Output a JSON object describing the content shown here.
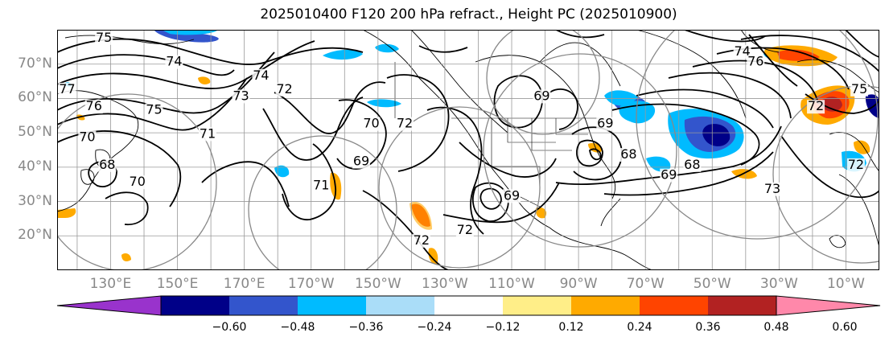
{
  "title": "2025010400 F120 200 hPa refract., Height PC (2025010900)",
  "axes": {
    "latitude_labels": [
      "70°N",
      "60°N",
      "50°N",
      "40°N",
      "30°N",
      "20°N"
    ],
    "longitude_labels": [
      "130°E",
      "150°E",
      "170°E",
      "170°W",
      "150°W",
      "130°W",
      "110°W",
      "90°W",
      "70°W",
      "50°W",
      "30°W",
      "10°W"
    ]
  },
  "contour_labels": [
    {
      "text": "75",
      "lon": 128,
      "lat": 77
    },
    {
      "text": "74",
      "lon": 149,
      "lat": 70
    },
    {
      "text": "77",
      "lon": 117,
      "lat": 62
    },
    {
      "text": "76",
      "lon": 125,
      "lat": 57
    },
    {
      "text": "75",
      "lon": 143,
      "lat": 56
    },
    {
      "text": "73",
      "lon": 169,
      "lat": 60
    },
    {
      "text": "74",
      "lon": 175,
      "lat": 66
    },
    {
      "text": "72",
      "lon": 182,
      "lat": 62
    },
    {
      "text": "71",
      "lon": 159,
      "lat": 49
    },
    {
      "text": "70",
      "lon": 123,
      "lat": 48
    },
    {
      "text": "68",
      "lon": 129,
      "lat": 40
    },
    {
      "text": "70",
      "lon": 138,
      "lat": 35
    },
    {
      "text": "71",
      "lon": 193,
      "lat": 34
    },
    {
      "text": "69",
      "lon": 205,
      "lat": 41
    },
    {
      "text": "70",
      "lon": 208,
      "lat": 52
    },
    {
      "text": "72",
      "lon": 218,
      "lat": 52
    },
    {
      "text": "72",
      "lon": 223,
      "lat": 18
    },
    {
      "text": "72",
      "lon": 236,
      "lat": 21
    },
    {
      "text": "69",
      "lon": 250,
      "lat": 31
    },
    {
      "text": "69",
      "lon": 259,
      "lat": 60
    },
    {
      "text": "69",
      "lon": 278,
      "lat": 52
    },
    {
      "text": "68",
      "lon": 285,
      "lat": 43
    },
    {
      "text": "69",
      "lon": 297,
      "lat": 37
    },
    {
      "text": "68",
      "lon": 304,
      "lat": 40
    },
    {
      "text": "74",
      "lon": 319,
      "lat": 73
    },
    {
      "text": "76",
      "lon": 323,
      "lat": 70
    },
    {
      "text": "73",
      "lon": 328,
      "lat": 33
    },
    {
      "text": "72",
      "lon": 353,
      "lat": 40
    },
    {
      "text": "75",
      "lon": 354,
      "lat": 62
    },
    {
      "text": "72",
      "lon": 341,
      "lat": 57
    }
  ],
  "colorbar": {
    "ticks": [
      "−0.60",
      "−0.48",
      "−0.36",
      "−0.24",
      "−0.12",
      "0.12",
      "0.24",
      "0.36",
      "0.48",
      "0.60"
    ],
    "colors": [
      "#9933cc",
      "#000088",
      "#3355cc",
      "#00bbff",
      "#aaddf8",
      "#ffffff",
      "#ffee88",
      "#ffaa00",
      "#ff4400",
      "#b22222",
      "#ff88aa"
    ]
  }
}
